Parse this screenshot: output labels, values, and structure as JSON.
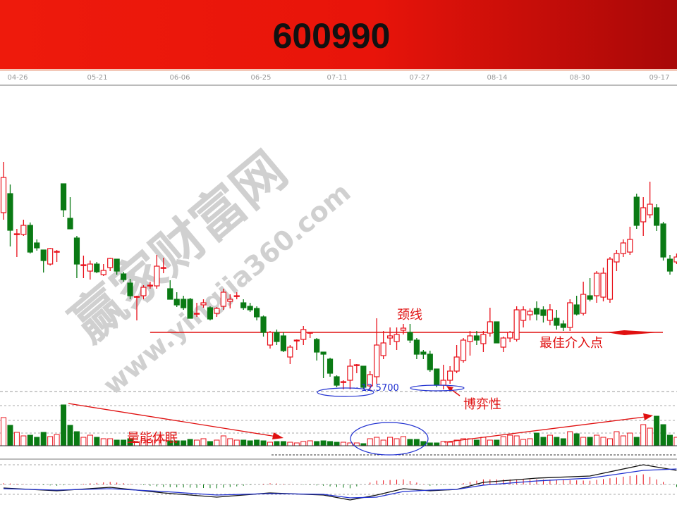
{
  "header": {
    "title": "600990"
  },
  "chart_data": {
    "type": "candlestick",
    "title": "600990",
    "x_tick_labels": [
      "04-26",
      "05-21",
      "06-06",
      "06-25",
      "07-11",
      "07-27",
      "08-14",
      "08-30",
      "09-17"
    ],
    "candles_ohlc": [
      [
        15.08,
        15.8,
        14.98,
        15.58
      ],
      [
        15.35,
        15.48,
        14.6,
        14.83
      ],
      [
        14.78,
        14.85,
        14.45,
        14.78
      ],
      [
        14.77,
        14.98,
        14.75,
        14.9
      ],
      [
        14.9,
        14.94,
        14.5,
        14.52
      ],
      [
        14.65,
        14.7,
        14.54,
        14.58
      ],
      [
        14.55,
        14.55,
        14.23,
        14.4
      ],
      [
        14.35,
        14.58,
        14.33,
        14.57
      ],
      [
        14.53,
        14.55,
        14.38,
        14.53
      ],
      [
        15.49,
        15.49,
        15.02,
        15.12
      ],
      [
        15.0,
        15.3,
        14.85,
        14.85
      ],
      [
        14.72,
        14.75,
        14.15,
        14.35
      ],
      [
        14.34,
        14.47,
        14.15,
        14.34
      ],
      [
        14.25,
        14.4,
        14.13,
        14.35
      ],
      [
        14.35,
        14.38,
        14.22,
        14.24
      ],
      [
        14.2,
        14.35,
        14.18,
        14.26
      ],
      [
        14.3,
        14.44,
        14.25,
        14.43
      ],
      [
        14.42,
        14.42,
        14.2,
        14.25
      ],
      [
        14.21,
        14.24,
        14.1,
        14.13
      ],
      [
        14.08,
        14.14,
        13.85,
        13.9
      ],
      [
        13.88,
        13.9,
        13.55,
        13.89
      ],
      [
        13.9,
        14.05,
        13.85,
        14.02
      ],
      [
        14.05,
        14.1,
        14.0,
        14.05
      ],
      [
        14.04,
        14.48,
        14.0,
        14.32
      ],
      [
        14.3,
        14.44,
        14.22,
        14.3
      ],
      [
        14.0,
        14.12,
        13.85,
        13.85
      ],
      [
        13.85,
        13.95,
        13.74,
        13.77
      ],
      [
        13.85,
        13.9,
        13.7,
        13.73
      ],
      [
        13.85,
        13.87,
        13.58,
        13.58
      ],
      [
        13.65,
        13.8,
        13.6,
        13.65
      ],
      [
        13.77,
        13.85,
        13.73,
        13.8
      ],
      [
        13.73,
        13.75,
        13.55,
        13.57
      ],
      [
        13.65,
        13.74,
        13.6,
        13.72
      ],
      [
        13.75,
        14.0,
        13.7,
        13.95
      ],
      [
        13.82,
        13.92,
        13.72,
        13.85
      ],
      [
        13.9,
        13.95,
        13.85,
        13.9
      ],
      [
        13.8,
        13.85,
        13.7,
        13.73
      ],
      [
        13.75,
        13.8,
        13.67,
        13.7
      ],
      [
        13.72,
        13.75,
        13.55,
        13.6
      ],
      [
        13.6,
        13.62,
        13.32,
        13.38
      ],
      [
        13.2,
        13.4,
        13.15,
        13.38
      ],
      [
        13.38,
        13.42,
        13.2,
        13.25
      ],
      [
        13.33,
        13.38,
        13.1,
        13.12
      ],
      [
        13.03,
        13.2,
        12.93,
        13.17
      ],
      [
        13.27,
        13.28,
        13.13,
        13.27
      ],
      [
        13.28,
        13.47,
        13.2,
        13.42
      ],
      [
        13.38,
        13.38,
        13.3,
        13.38
      ],
      [
        13.28,
        13.3,
        12.98,
        13.1
      ],
      [
        13.1,
        13.1,
        12.73,
        13.07
      ],
      [
        13.0,
        13.02,
        12.75,
        12.8
      ],
      [
        12.75,
        12.77,
        12.6,
        12.63
      ],
      [
        12.67,
        12.7,
        12.57,
        12.68
      ],
      [
        12.7,
        13.0,
        12.57,
        12.9
      ],
      [
        12.92,
        12.93,
        12.8,
        12.92
      ],
      [
        12.9,
        12.9,
        12.58,
        12.6
      ],
      [
        12.62,
        12.83,
        12.57,
        12.78
      ],
      [
        12.75,
        13.58,
        12.65,
        13.2
      ],
      [
        13.05,
        13.4,
        13.0,
        13.23
      ],
      [
        13.3,
        13.45,
        13.2,
        13.33
      ],
      [
        13.25,
        13.45,
        13.13,
        13.35
      ],
      [
        13.41,
        13.5,
        13.35,
        13.44
      ],
      [
        13.38,
        13.5,
        13.23,
        13.27
      ],
      [
        13.27,
        13.3,
        13.0,
        13.07
      ],
      [
        13.1,
        13.13,
        13.0,
        13.07
      ],
      [
        13.07,
        13.12,
        12.82,
        12.85
      ],
      [
        12.86,
        12.86,
        12.6,
        12.63
      ],
      [
        12.63,
        12.92,
        12.57,
        12.7
      ],
      [
        12.7,
        12.9,
        12.65,
        12.83
      ],
      [
        12.83,
        13.2,
        12.8,
        13.03
      ],
      [
        12.98,
        13.3,
        12.95,
        13.27
      ],
      [
        13.25,
        13.4,
        13.05,
        13.33
      ],
      [
        13.33,
        13.4,
        13.2,
        13.27
      ],
      [
        13.22,
        13.4,
        13.1,
        13.35
      ],
      [
        13.37,
        13.73,
        13.32,
        13.53
      ],
      [
        13.53,
        13.53,
        13.23,
        13.23
      ],
      [
        13.17,
        13.32,
        13.1,
        13.3
      ],
      [
        13.3,
        13.4,
        13.24,
        13.38
      ],
      [
        13.28,
        13.75,
        13.25,
        13.7
      ],
      [
        13.55,
        13.75,
        13.45,
        13.7
      ],
      [
        13.63,
        13.72,
        13.55,
        13.68
      ],
      [
        13.72,
        13.82,
        13.55,
        13.64
      ],
      [
        13.7,
        13.75,
        13.52,
        13.62
      ],
      [
        13.55,
        13.78,
        13.48,
        13.7
      ],
      [
        13.58,
        13.7,
        13.42,
        13.48
      ],
      [
        13.5,
        13.55,
        13.4,
        13.45
      ],
      [
        13.45,
        13.85,
        13.4,
        13.8
      ],
      [
        13.77,
        13.9,
        13.62,
        13.64
      ],
      [
        13.65,
        14.1,
        13.62,
        13.92
      ],
      [
        13.9,
        14.15,
        13.82,
        13.85
      ],
      [
        13.9,
        14.25,
        13.8,
        14.22
      ],
      [
        13.88,
        14.3,
        13.82,
        14.22
      ],
      [
        13.85,
        14.45,
        13.8,
        14.42
      ],
      [
        14.38,
        14.55,
        14.25,
        14.5
      ],
      [
        14.5,
        14.7,
        14.45,
        14.65
      ],
      [
        14.52,
        14.88,
        14.48,
        14.7
      ],
      [
        15.3,
        15.35,
        14.85,
        14.9
      ],
      [
        14.95,
        15.3,
        14.75,
        15.15
      ],
      [
        15.05,
        15.52,
        15.0,
        15.2
      ],
      [
        15.15,
        15.2,
        14.82,
        14.9
      ],
      [
        14.92,
        14.95,
        14.4,
        14.45
      ],
      [
        14.42,
        14.48,
        14.2,
        14.25
      ],
      [
        14.38,
        14.5,
        14.35,
        14.45
      ]
    ],
    "volume": [
      40,
      29,
      19,
      14,
      15,
      12,
      19,
      13,
      16,
      58,
      29,
      20,
      12,
      15,
      12,
      10,
      10,
      8,
      8,
      10,
      6,
      8,
      8,
      8,
      8,
      7,
      7,
      7,
      9,
      8,
      10,
      6,
      8,
      14,
      10,
      8,
      8,
      7,
      8,
      7,
      5,
      6,
      6,
      5,
      4,
      6,
      7,
      6,
      7,
      6,
      5,
      5,
      4,
      4,
      3,
      10,
      12,
      8,
      12,
      10,
      13,
      9,
      9,
      6,
      4,
      4,
      6,
      5,
      8,
      10,
      10,
      8,
      12,
      8,
      8,
      13,
      15,
      14,
      9,
      10,
      18,
      12,
      15,
      12,
      10,
      20,
      17,
      12,
      12,
      15,
      12,
      10,
      20,
      14,
      18,
      12,
      30,
      25,
      42,
      30,
      15,
      12
    ],
    "macd": {
      "sample_index": [
        0,
        8,
        16,
        24,
        32,
        40,
        48,
        52,
        56,
        60,
        64,
        68,
        72,
        80,
        88,
        96,
        101
      ],
      "dif": [
        -0.05,
        -0.09,
        -0.04,
        -0.12,
        -0.18,
        -0.12,
        -0.15,
        -0.22,
        -0.15,
        -0.06,
        -0.09,
        -0.07,
        0.03,
        0.09,
        0.12,
        0.28,
        0.2
      ],
      "dea": [
        -0.06,
        -0.08,
        -0.06,
        -0.1,
        -0.15,
        -0.13,
        -0.14,
        -0.19,
        -0.18,
        -0.1,
        -0.08,
        -0.07,
        -0.01,
        0.05,
        0.09,
        0.2,
        0.22
      ]
    },
    "neckline": {
      "price": 13.38,
      "start_index": 22,
      "end_index": 100
    },
    "low_marker": {
      "price": 12.57,
      "label": "12.5700"
    },
    "colors": {
      "up": "#e8101a",
      "down": "#0a7a14",
      "neckline": "#e01010",
      "annotation": "#e01010",
      "ellipse": "#2030d0",
      "dif": "#111111",
      "dea": "#2030d0"
    }
  },
  "annotations": {
    "neckline": "颈线",
    "best_entry": "最佳介入点",
    "game": "博弈性",
    "volume_dormant": "量能休眠",
    "low_value": "12.5700"
  },
  "watermark": {
    "name": "赢家财富网",
    "url": "www.yingjia360.com"
  }
}
